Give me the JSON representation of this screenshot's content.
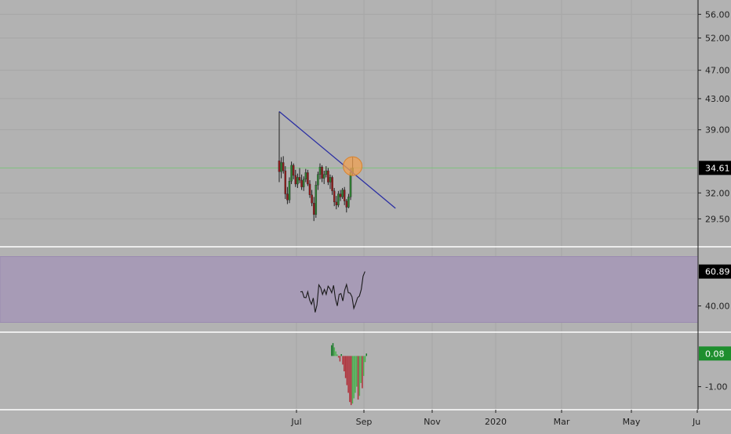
{
  "colors": {
    "background": "#b2b2b2",
    "grid": "#a6a6a6",
    "separator": "#ffffff",
    "axis_text": "#1f1f1f",
    "up_candle": "#2e7d32",
    "down_candle": "#8e1b1b",
    "wick": "#202020",
    "trendline": "#2b2fa3",
    "highlight_fill": "#f0a050",
    "highlight_stroke": "#d9822b",
    "current_price_line": "#7fbf7f",
    "rsi_band": "#a79bb6",
    "rsi_band_edge": "#9b8bb0",
    "rsi_line": "#1a1a1a",
    "hist_up": "#4caf50",
    "hist_down": "#e57373",
    "hist_up_strong": "#1b7a2a",
    "hist_down_strong": "#b0303a",
    "label_dark_bg": "#000000",
    "label_green_bg": "#1e8e2e",
    "label_text": "#ffffff"
  },
  "chart_data": [
    {
      "type": "candlestick",
      "panel": "price",
      "time_axis_ticks": [
        "Jul",
        "Sep",
        "Nov",
        "2020",
        "Mar",
        "May",
        "Ju"
      ],
      "y_ticks": [
        "56.00",
        "52.00",
        "47.00",
        "43.00",
        "39.00",
        "32.00",
        "29.50"
      ],
      "current_value_label": "34.61",
      "current_value": 34.61,
      "y_range_visible": [
        27.5,
        58.0
      ],
      "scale": "log",
      "candles": [
        {
          "o": 35.4,
          "h": 41.3,
          "l": 33.1,
          "c": 34.2
        },
        {
          "o": 34.2,
          "h": 35.8,
          "l": 33.5,
          "c": 35.2
        },
        {
          "o": 35.2,
          "h": 35.9,
          "l": 34.0,
          "c": 34.3
        },
        {
          "o": 34.3,
          "h": 34.8,
          "l": 31.4,
          "c": 31.9
        },
        {
          "o": 31.9,
          "h": 32.6,
          "l": 30.9,
          "c": 31.3
        },
        {
          "o": 31.3,
          "h": 33.6,
          "l": 31.0,
          "c": 33.2
        },
        {
          "o": 33.2,
          "h": 35.3,
          "l": 32.9,
          "c": 34.9
        },
        {
          "o": 34.9,
          "h": 35.1,
          "l": 33.4,
          "c": 33.8
        },
        {
          "o": 33.8,
          "h": 34.4,
          "l": 32.6,
          "c": 32.9
        },
        {
          "o": 32.9,
          "h": 34.0,
          "l": 32.5,
          "c": 33.6
        },
        {
          "o": 33.6,
          "h": 34.6,
          "l": 33.0,
          "c": 33.3
        },
        {
          "o": 33.3,
          "h": 33.9,
          "l": 32.3,
          "c": 32.6
        },
        {
          "o": 32.6,
          "h": 33.7,
          "l": 32.2,
          "c": 33.4
        },
        {
          "o": 33.4,
          "h": 34.5,
          "l": 33.1,
          "c": 34.1
        },
        {
          "o": 34.1,
          "h": 34.4,
          "l": 32.7,
          "c": 32.9
        },
        {
          "o": 32.9,
          "h": 33.3,
          "l": 31.5,
          "c": 31.8
        },
        {
          "o": 31.8,
          "h": 32.3,
          "l": 30.7,
          "c": 31.0
        },
        {
          "o": 31.0,
          "h": 31.6,
          "l": 29.3,
          "c": 29.9
        },
        {
          "o": 29.9,
          "h": 33.2,
          "l": 29.6,
          "c": 32.8
        },
        {
          "o": 32.8,
          "h": 34.2,
          "l": 32.3,
          "c": 33.9
        },
        {
          "o": 33.9,
          "h": 35.1,
          "l": 33.4,
          "c": 34.7
        },
        {
          "o": 34.7,
          "h": 34.9,
          "l": 33.1,
          "c": 33.5
        },
        {
          "o": 33.5,
          "h": 34.3,
          "l": 32.9,
          "c": 33.9
        },
        {
          "o": 33.9,
          "h": 34.8,
          "l": 33.6,
          "c": 34.3
        },
        {
          "o": 34.3,
          "h": 34.6,
          "l": 32.8,
          "c": 33.1
        },
        {
          "o": 33.1,
          "h": 33.9,
          "l": 32.4,
          "c": 33.6
        },
        {
          "o": 33.6,
          "h": 33.8,
          "l": 31.8,
          "c": 32.2
        },
        {
          "o": 32.2,
          "h": 32.5,
          "l": 30.7,
          "c": 31.1
        },
        {
          "o": 31.1,
          "h": 31.7,
          "l": 30.4,
          "c": 30.8
        },
        {
          "o": 30.8,
          "h": 32.2,
          "l": 30.6,
          "c": 31.9
        },
        {
          "o": 31.9,
          "h": 32.3,
          "l": 31.2,
          "c": 31.6
        },
        {
          "o": 31.6,
          "h": 32.5,
          "l": 31.4,
          "c": 32.3
        },
        {
          "o": 32.3,
          "h": 32.6,
          "l": 30.8,
          "c": 31.2
        },
        {
          "o": 31.2,
          "h": 31.4,
          "l": 30.1,
          "c": 30.6
        },
        {
          "o": 30.6,
          "h": 31.9,
          "l": 30.5,
          "c": 31.6
        },
        {
          "o": 31.6,
          "h": 34.6,
          "l": 31.3,
          "c": 34.1
        },
        {
          "o": 34.1,
          "h": 35.8,
          "l": 33.8,
          "c": 34.6
        }
      ],
      "trendline": {
        "from": [
          0,
          41.3
        ],
        "to": [
          57,
          30.5
        ]
      },
      "highlight_circle": {
        "index": 36,
        "value": 34.8
      }
    },
    {
      "type": "line",
      "panel": "rsi",
      "y_ticks": [
        "40.00"
      ],
      "current_value_label": "60.89",
      "current_value": 60.89,
      "band": [
        30,
        70
      ],
      "y_range_visible": [
        25.0,
        75.0
      ],
      "values": [
        48.5,
        48.7,
        45.2,
        45.0,
        48.6,
        43.5,
        41.0,
        44.8,
        36.1,
        40.5,
        52.8,
        51.0,
        47.0,
        50.0,
        47.0,
        52.0,
        50.5,
        48.0,
        52.5,
        44.5,
        40.0,
        47.0,
        47.5,
        43.0,
        49.5,
        53.0,
        48.0,
        47.8,
        45.5,
        38.5,
        41.5,
        45.0,
        46.0,
        50.0,
        58.0,
        60.89
      ]
    },
    {
      "type": "bar",
      "panel": "histogram",
      "y_ticks": [
        "-1.00"
      ],
      "current_value_label": "0.08",
      "current_value": 0.08,
      "y_range_visible": [
        -1.75,
        0.75
      ],
      "values": [
        0.35,
        0.42,
        0.28,
        0.15,
        0.05,
        -0.05,
        -0.18,
        0.06,
        -0.28,
        -0.5,
        -0.72,
        -0.95,
        -1.2,
        -1.5,
        -1.6,
        -1.55,
        -1.38,
        -1.2,
        -1.0,
        -1.42,
        -1.3,
        -0.88,
        -1.05,
        -0.65,
        -0.2,
        0.08
      ]
    }
  ]
}
